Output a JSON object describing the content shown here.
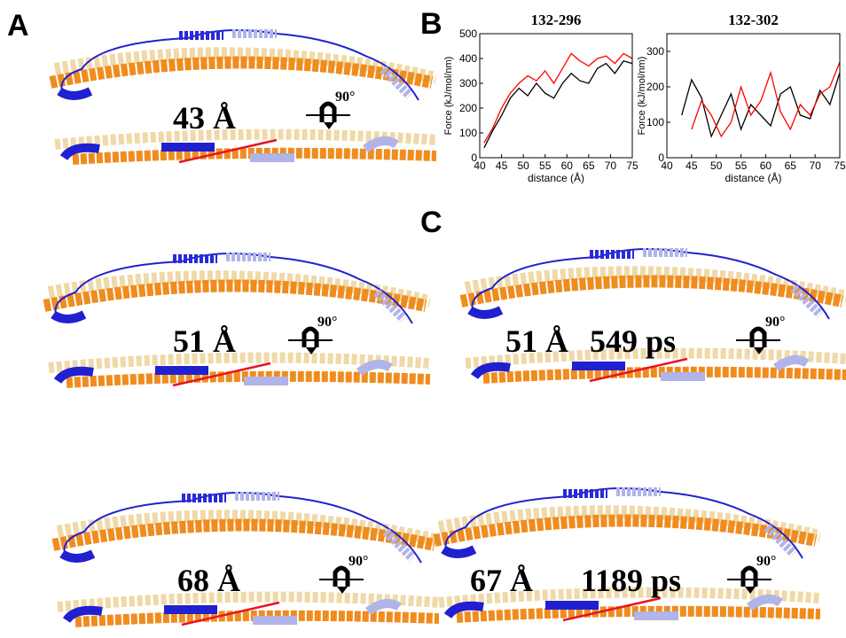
{
  "panels": [
    "A",
    "B",
    "C"
  ],
  "rotation_label": "90°",
  "structures": [
    {
      "label": "43 Å"
    },
    {
      "label": "51 Å"
    },
    {
      "label": "51 Å",
      "time": "549 ps"
    },
    {
      "label": "68 Å"
    },
    {
      "label": "67 Å",
      "time": "1189 ps"
    }
  ],
  "chart_data": [
    {
      "type": "line",
      "title": "132-296",
      "x_label": "distance (Å)",
      "y_label": "Force (kJ/mol/nm)",
      "x": [
        41,
        43,
        45,
        47,
        49,
        51,
        53,
        55,
        57,
        59,
        61,
        63,
        65,
        67,
        69,
        71,
        73,
        75
      ],
      "series": [
        {
          "color": "#000000",
          "values": [
            40,
            110,
            170,
            240,
            280,
            250,
            300,
            260,
            240,
            300,
            340,
            310,
            300,
            360,
            380,
            340,
            390,
            380
          ]
        },
        {
          "color": "#ff0000",
          "values": [
            60,
            120,
            200,
            260,
            300,
            330,
            310,
            350,
            300,
            360,
            420,
            390,
            370,
            400,
            410,
            380,
            420,
            400
          ]
        }
      ],
      "xlim": [
        40,
        75
      ],
      "xticks": [
        40,
        45,
        50,
        55,
        60,
        65,
        70,
        75
      ],
      "ylim": [
        0,
        500
      ],
      "yticks": [
        0,
        100,
        200,
        300,
        400,
        500
      ]
    },
    {
      "type": "line",
      "title": "132-302",
      "x_label": "distance (Å)",
      "y_label": "Force (kJ/mol/nm)",
      "x": [
        41,
        43,
        45,
        47,
        49,
        51,
        53,
        55,
        57,
        59,
        61,
        63,
        65,
        67,
        69,
        71,
        73,
        75
      ],
      "series": [
        {
          "color": "#000000",
          "values": [
            null,
            120,
            220,
            170,
            60,
            120,
            180,
            80,
            150,
            120,
            90,
            180,
            200,
            120,
            110,
            190,
            150,
            240
          ]
        },
        {
          "color": "#ff0000",
          "values": [
            null,
            null,
            80,
            160,
            120,
            60,
            100,
            200,
            120,
            160,
            240,
            130,
            80,
            150,
            120,
            180,
            200,
            270
          ]
        }
      ],
      "xlim": [
        40,
        75
      ],
      "xticks": [
        40,
        45,
        50,
        55,
        60,
        65,
        70,
        75
      ],
      "ylim": [
        0,
        350
      ],
      "yticks": [
        0,
        100,
        200,
        300
      ]
    }
  ]
}
